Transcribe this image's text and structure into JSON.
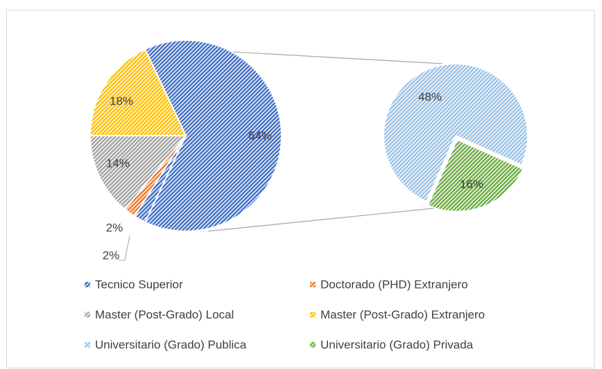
{
  "chart_data": {
    "type": "pie-of-pie",
    "categories": [
      "Tecnico Superior",
      "Doctorado (PHD) Extranjero",
      "Master (Post-Grado) Local",
      "Master (Post-Grado) Extranjero",
      "Universitario (Grado) Publica",
      "Universitario (Grado) Privada"
    ],
    "values": [
      2,
      2,
      14,
      18,
      48,
      16
    ],
    "value_labels": [
      "2%",
      "2%",
      "14%",
      "18%",
      "48%",
      "16%"
    ],
    "colors": [
      "#4472c4",
      "#ed7d31",
      "#a5a5a5",
      "#ffc000",
      "#9dc3e6",
      "#70ad47"
    ],
    "other": {
      "value": 64,
      "label": "64%"
    },
    "legend": "bottom"
  }
}
